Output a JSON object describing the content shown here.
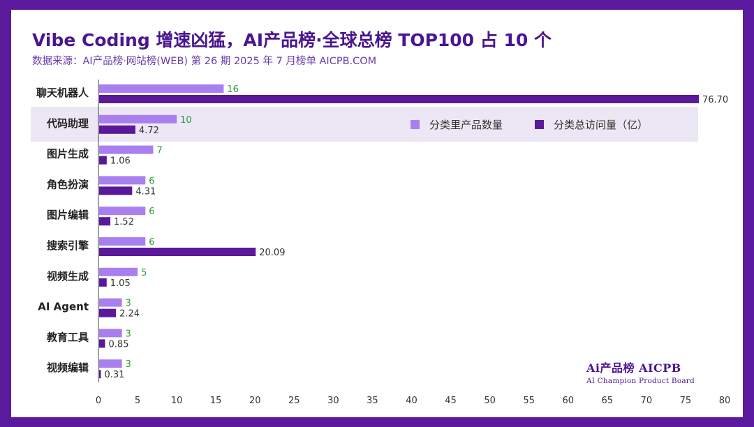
{
  "title": "Vibe Coding 增速凶猛，AI产品榜·全球总榜 TOP100 占 10 个",
  "subtitle": "数据来源：AI产品榜·网站榜(WEB) 第 26 期 2025 年 7 月榜单 AICPB.COM",
  "legend": {
    "count_label": "分类里产品数量",
    "visits_label": "分类总访问量（亿）"
  },
  "logo": {
    "line1": "Ai产品榜 AICPB",
    "line2": "AI Champion Product Board"
  },
  "colors": {
    "frame": "#5b1a9e",
    "count_bar": "#a97ff0",
    "visits_bar": "#5a189a",
    "count_label": "#2e9a3e",
    "visits_label": "#333333",
    "highlight": "#ece7f4"
  },
  "chart_data": {
    "type": "bar",
    "orientation": "horizontal",
    "categories": [
      "聊天机器人",
      "代码助理",
      "图片生成",
      "角色扮演",
      "图片编辑",
      "搜索引擎",
      "视频生成",
      "AI Agent",
      "教育工具",
      "视频编辑"
    ],
    "series": [
      {
        "name": "分类里产品数量",
        "values": [
          16,
          10,
          7,
          6,
          6,
          6,
          5,
          3,
          3,
          3
        ],
        "labels": [
          "16",
          "10",
          "7",
          "6",
          "6",
          "6",
          "5",
          "3",
          "3",
          "3"
        ]
      },
      {
        "name": "分类总访问量（亿）",
        "values": [
          76.7,
          4.72,
          1.06,
          4.31,
          1.52,
          20.09,
          1.05,
          2.24,
          0.85,
          0.31
        ],
        "labels": [
          "76.70",
          "4.72",
          "1.06",
          "4.31",
          "1.52",
          "20.09",
          "1.05",
          "2.24",
          "0.85",
          "0.31"
        ]
      }
    ],
    "xlim": [
      0,
      80
    ],
    "xticks": [
      "0",
      "5",
      "10",
      "15",
      "20",
      "25",
      "30",
      "35",
      "40",
      "45",
      "50",
      "55",
      "60",
      "65",
      "70",
      "75",
      "80"
    ],
    "highlighted_category": "代码助理",
    "legend_position": "top-right"
  }
}
